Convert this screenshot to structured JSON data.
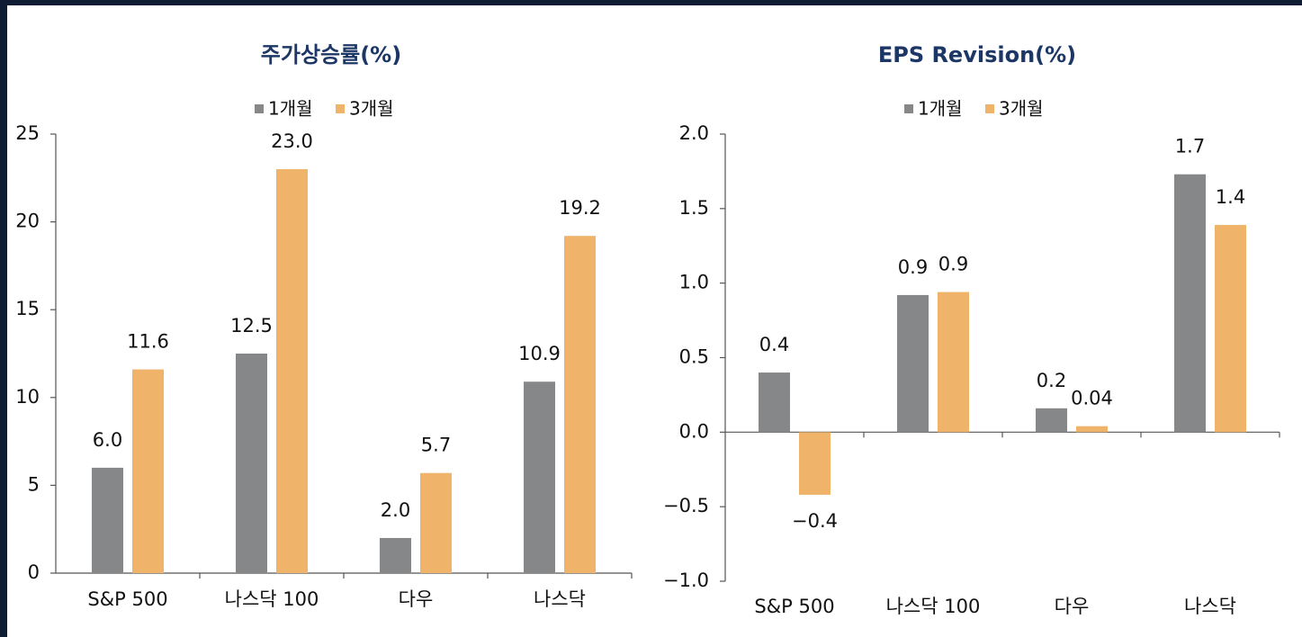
{
  "chart_data": [
    {
      "type": "bar",
      "title": "주가상승률(%)",
      "categories": [
        "S&P 500",
        "나스닥 100",
        "다우",
        "나스닥"
      ],
      "series": [
        {
          "name": "1개월",
          "color": "#858789",
          "values": [
            6.0,
            12.5,
            2.0,
            10.9
          ],
          "value_labels": [
            "6.0",
            "12.5",
            "2.0",
            "10.9"
          ]
        },
        {
          "name": "3개월",
          "color": "#f0b36a",
          "values": [
            11.6,
            23.0,
            5.7,
            19.2
          ],
          "value_labels": [
            "11.6",
            "23.0",
            "5.7",
            "19.2"
          ]
        }
      ],
      "ylim": [
        0,
        25
      ],
      "yticks": [
        0,
        5,
        10,
        15,
        20,
        25
      ],
      "legend": "top"
    },
    {
      "type": "bar",
      "title": "EPS Revision(%)",
      "categories": [
        "S&P 500",
        "나스닥 100",
        "다우",
        "나스닥"
      ],
      "series": [
        {
          "name": "1개월",
          "color": "#858789",
          "values": [
            0.4,
            0.92,
            0.16,
            1.73
          ],
          "value_labels": [
            "0.4",
            "0.9",
            "0.2",
            "1.7"
          ]
        },
        {
          "name": "3개월",
          "color": "#f0b36a",
          "values": [
            -0.42,
            0.94,
            0.04,
            1.39
          ],
          "value_labels": [
            "−0.4",
            "0.9",
            "0.04",
            "1.4"
          ]
        }
      ],
      "ylim": [
        -1,
        2
      ],
      "yticks": [
        {
          "value": -1,
          "label": "−1.0"
        },
        {
          "value": -0.5,
          "label": "−0.5"
        },
        {
          "value": 0,
          "label": "0.0"
        },
        {
          "value": 0.5,
          "label": "0.5"
        },
        {
          "value": 1,
          "label": "1.0"
        },
        {
          "value": 1.5,
          "label": "1.5"
        },
        {
          "value": 2,
          "label": "2.0"
        }
      ],
      "legend": "top"
    }
  ]
}
